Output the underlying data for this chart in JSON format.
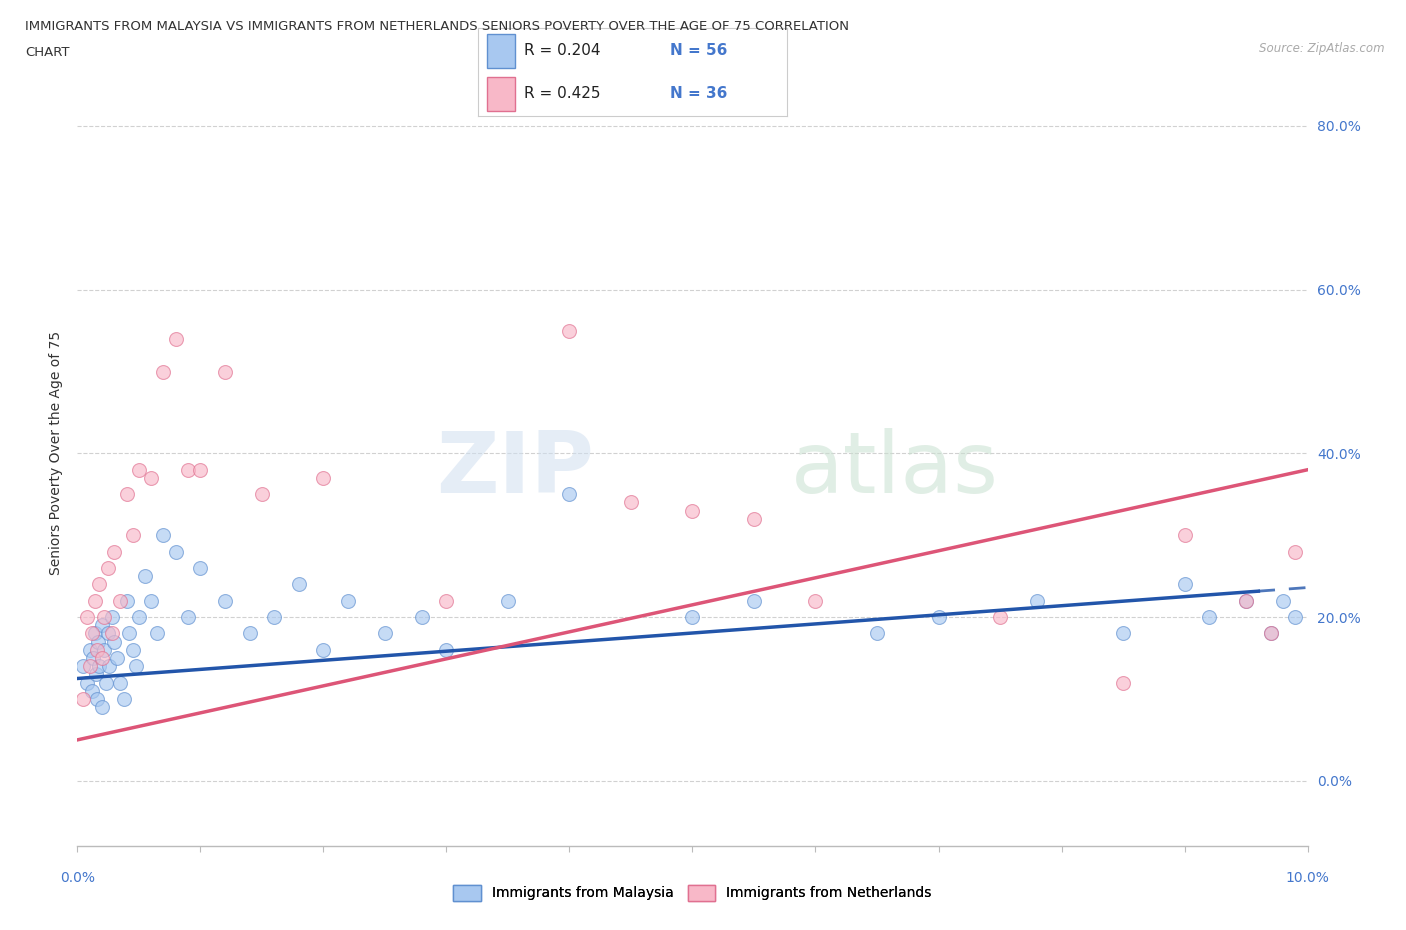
{
  "title_line1": "IMMIGRANTS FROM MALAYSIA VS IMMIGRANTS FROM NETHERLANDS SENIORS POVERTY OVER THE AGE OF 75 CORRELATION",
  "title_line2": "CHART",
  "source_text": "Source: ZipAtlas.com",
  "ylabel": "Seniors Poverty Over the Age of 75",
  "xlim": [
    0.0,
    10.0
  ],
  "ylim": [
    -8.0,
    88.0
  ],
  "y_ticks": [
    0,
    20,
    40,
    60,
    80
  ],
  "y_tick_labels": [
    "0.0%",
    "20.0%",
    "40.0%",
    "60.0%",
    "80.0%"
  ],
  "watermark_zip": "ZIP",
  "watermark_atlas": "atlas",
  "legend_r1": "R = 0.204",
  "legend_n1": "N = 56",
  "legend_r2": "R = 0.425",
  "legend_n2": "N = 36",
  "color_malaysia_fill": "#a8c8f0",
  "color_malaysia_edge": "#6090d0",
  "color_netherlands_fill": "#f8b8c8",
  "color_netherlands_edge": "#e07090",
  "color_malaysia_line": "#2255aa",
  "color_netherlands_line": "#dd5577",
  "color_title": "#333333",
  "color_axis_label": "#4477cc",
  "malaysia_x": [
    0.05,
    0.08,
    0.1,
    0.12,
    0.13,
    0.14,
    0.15,
    0.16,
    0.17,
    0.18,
    0.2,
    0.2,
    0.22,
    0.23,
    0.25,
    0.26,
    0.28,
    0.3,
    0.32,
    0.35,
    0.38,
    0.4,
    0.42,
    0.45,
    0.48,
    0.5,
    0.55,
    0.6,
    0.65,
    0.7,
    0.8,
    0.9,
    1.0,
    1.2,
    1.4,
    1.6,
    1.8,
    2.0,
    2.2,
    2.5,
    2.8,
    3.0,
    3.5,
    4.0,
    5.0,
    5.5,
    6.5,
    7.0,
    7.8,
    8.5,
    9.0,
    9.2,
    9.5,
    9.7,
    9.8,
    9.9
  ],
  "malaysia_y": [
    14,
    12,
    16,
    11,
    15,
    18,
    13,
    10,
    17,
    14,
    19,
    9,
    16,
    12,
    18,
    14,
    20,
    17,
    15,
    12,
    10,
    22,
    18,
    16,
    14,
    20,
    25,
    22,
    18,
    30,
    28,
    20,
    26,
    22,
    18,
    20,
    24,
    16,
    22,
    18,
    20,
    16,
    22,
    35,
    20,
    22,
    18,
    20,
    22,
    18,
    24,
    20,
    22,
    18,
    22,
    20
  ],
  "netherlands_x": [
    0.05,
    0.08,
    0.1,
    0.12,
    0.14,
    0.16,
    0.18,
    0.2,
    0.22,
    0.25,
    0.28,
    0.3,
    0.35,
    0.4,
    0.45,
    0.5,
    0.6,
    0.7,
    0.8,
    0.9,
    1.0,
    1.2,
    1.5,
    2.0,
    3.0,
    4.0,
    4.5,
    5.0,
    5.5,
    6.0,
    7.5,
    8.5,
    9.0,
    9.5,
    9.7,
    9.9
  ],
  "netherlands_y": [
    10,
    20,
    14,
    18,
    22,
    16,
    24,
    15,
    20,
    26,
    18,
    28,
    22,
    35,
    30,
    38,
    37,
    50,
    54,
    38,
    38,
    50,
    35,
    37,
    22,
    55,
    34,
    33,
    32,
    22,
    20,
    12,
    30,
    22,
    18,
    28
  ],
  "malaysia_trendline_x0": 0.0,
  "malaysia_trendline_y0": 12.5,
  "malaysia_trendline_x1": 9.9,
  "malaysia_trendline_y1": 23.5,
  "malaysia_solid_end": 9.9,
  "malaysia_dashed_start": 9.6,
  "netherlands_trendline_x0": 0.0,
  "netherlands_trendline_y0": 5.0,
  "netherlands_trendline_x1": 10.0,
  "netherlands_trendline_y1": 38.0
}
